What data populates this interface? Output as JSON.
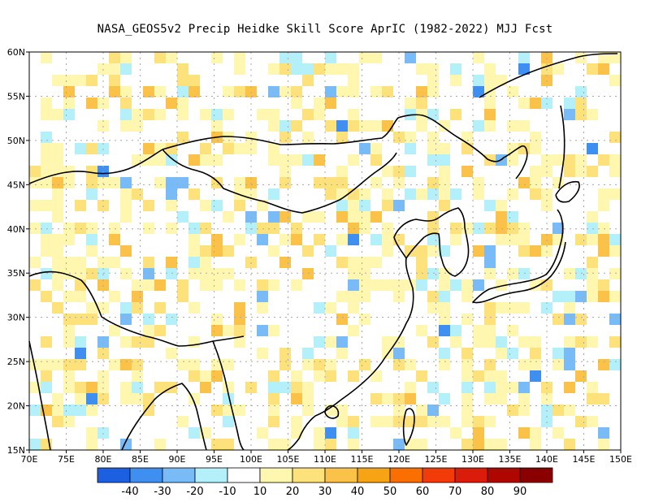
{
  "title": "NASA_GEOS5v2 Precip Heidke Skill Score AprIC (1982-2022) MJJ Fcst",
  "lat_labels": [
    "60N",
    "55N",
    "50N",
    "45N",
    "40N",
    "35N",
    "30N",
    "25N",
    "20N",
    "15N"
  ],
  "lon_labels": [
    "70E",
    "75E",
    "80E",
    "85E",
    "90E",
    "95E",
    "100E",
    "105E",
    "110E",
    "115E",
    "120E",
    "125E",
    "130E",
    "135E",
    "140E",
    "145E",
    "150E"
  ],
  "colorbar": {
    "labels": [
      "-40",
      "-30",
      "-20",
      "-10",
      "10",
      "20",
      "30",
      "40",
      "50",
      "60",
      "70",
      "80",
      "90"
    ],
    "colors": [
      "#1c5fe0",
      "#3f8ff0",
      "#79bbf7",
      "#b4f0f9",
      "#ffffff",
      "#fff7b0",
      "#fde17a",
      "#fbc24a",
      "#f7a414",
      "#fa6f02",
      "#f33b0a",
      "#dc1c0a",
      "#b00600",
      "#8a0000"
    ]
  },
  "colors": {
    "grid": "#a8a8a8",
    "coast": "#000000",
    "frame": "#000000"
  }
}
